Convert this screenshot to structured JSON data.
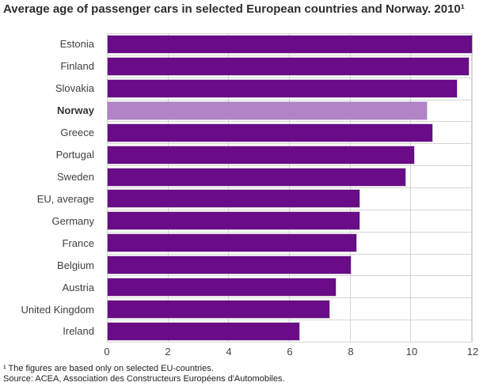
{
  "chart_data": {
    "type": "bar",
    "orientation": "horizontal",
    "title": "Average age of passenger cars in selected European countries and Norway. 2010¹",
    "categories": [
      "Estonia",
      "Finland",
      "Slovakia",
      "Norway",
      "Greece",
      "Portugal",
      "Sweden",
      "EU, average",
      "Germany",
      "France",
      "Belgium",
      "Austria",
      "United Kingdom",
      "Ireland"
    ],
    "values": [
      12.0,
      11.9,
      11.5,
      10.5,
      10.7,
      10.1,
      9.8,
      8.3,
      8.3,
      8.2,
      8.0,
      7.5,
      7.3,
      6.3
    ],
    "highlighted_category": "Norway",
    "xlabel": "",
    "ylabel": "",
    "xlim": [
      0,
      12
    ],
    "x_ticks": [
      0,
      2,
      4,
      6,
      8,
      10,
      12
    ],
    "grid": true,
    "legend": "none",
    "colors": {
      "bar": "#6a0b87",
      "highlight_bar": "#b283c6",
      "gridline": "#d6d6d6",
      "text": "#404040",
      "title_text": "#2e2e2e"
    },
    "footnote": "¹ The figures are based only on selected EU-countries.",
    "source": "Source: ACEA, Association des Constructeurs Européens d'Automobiles."
  }
}
